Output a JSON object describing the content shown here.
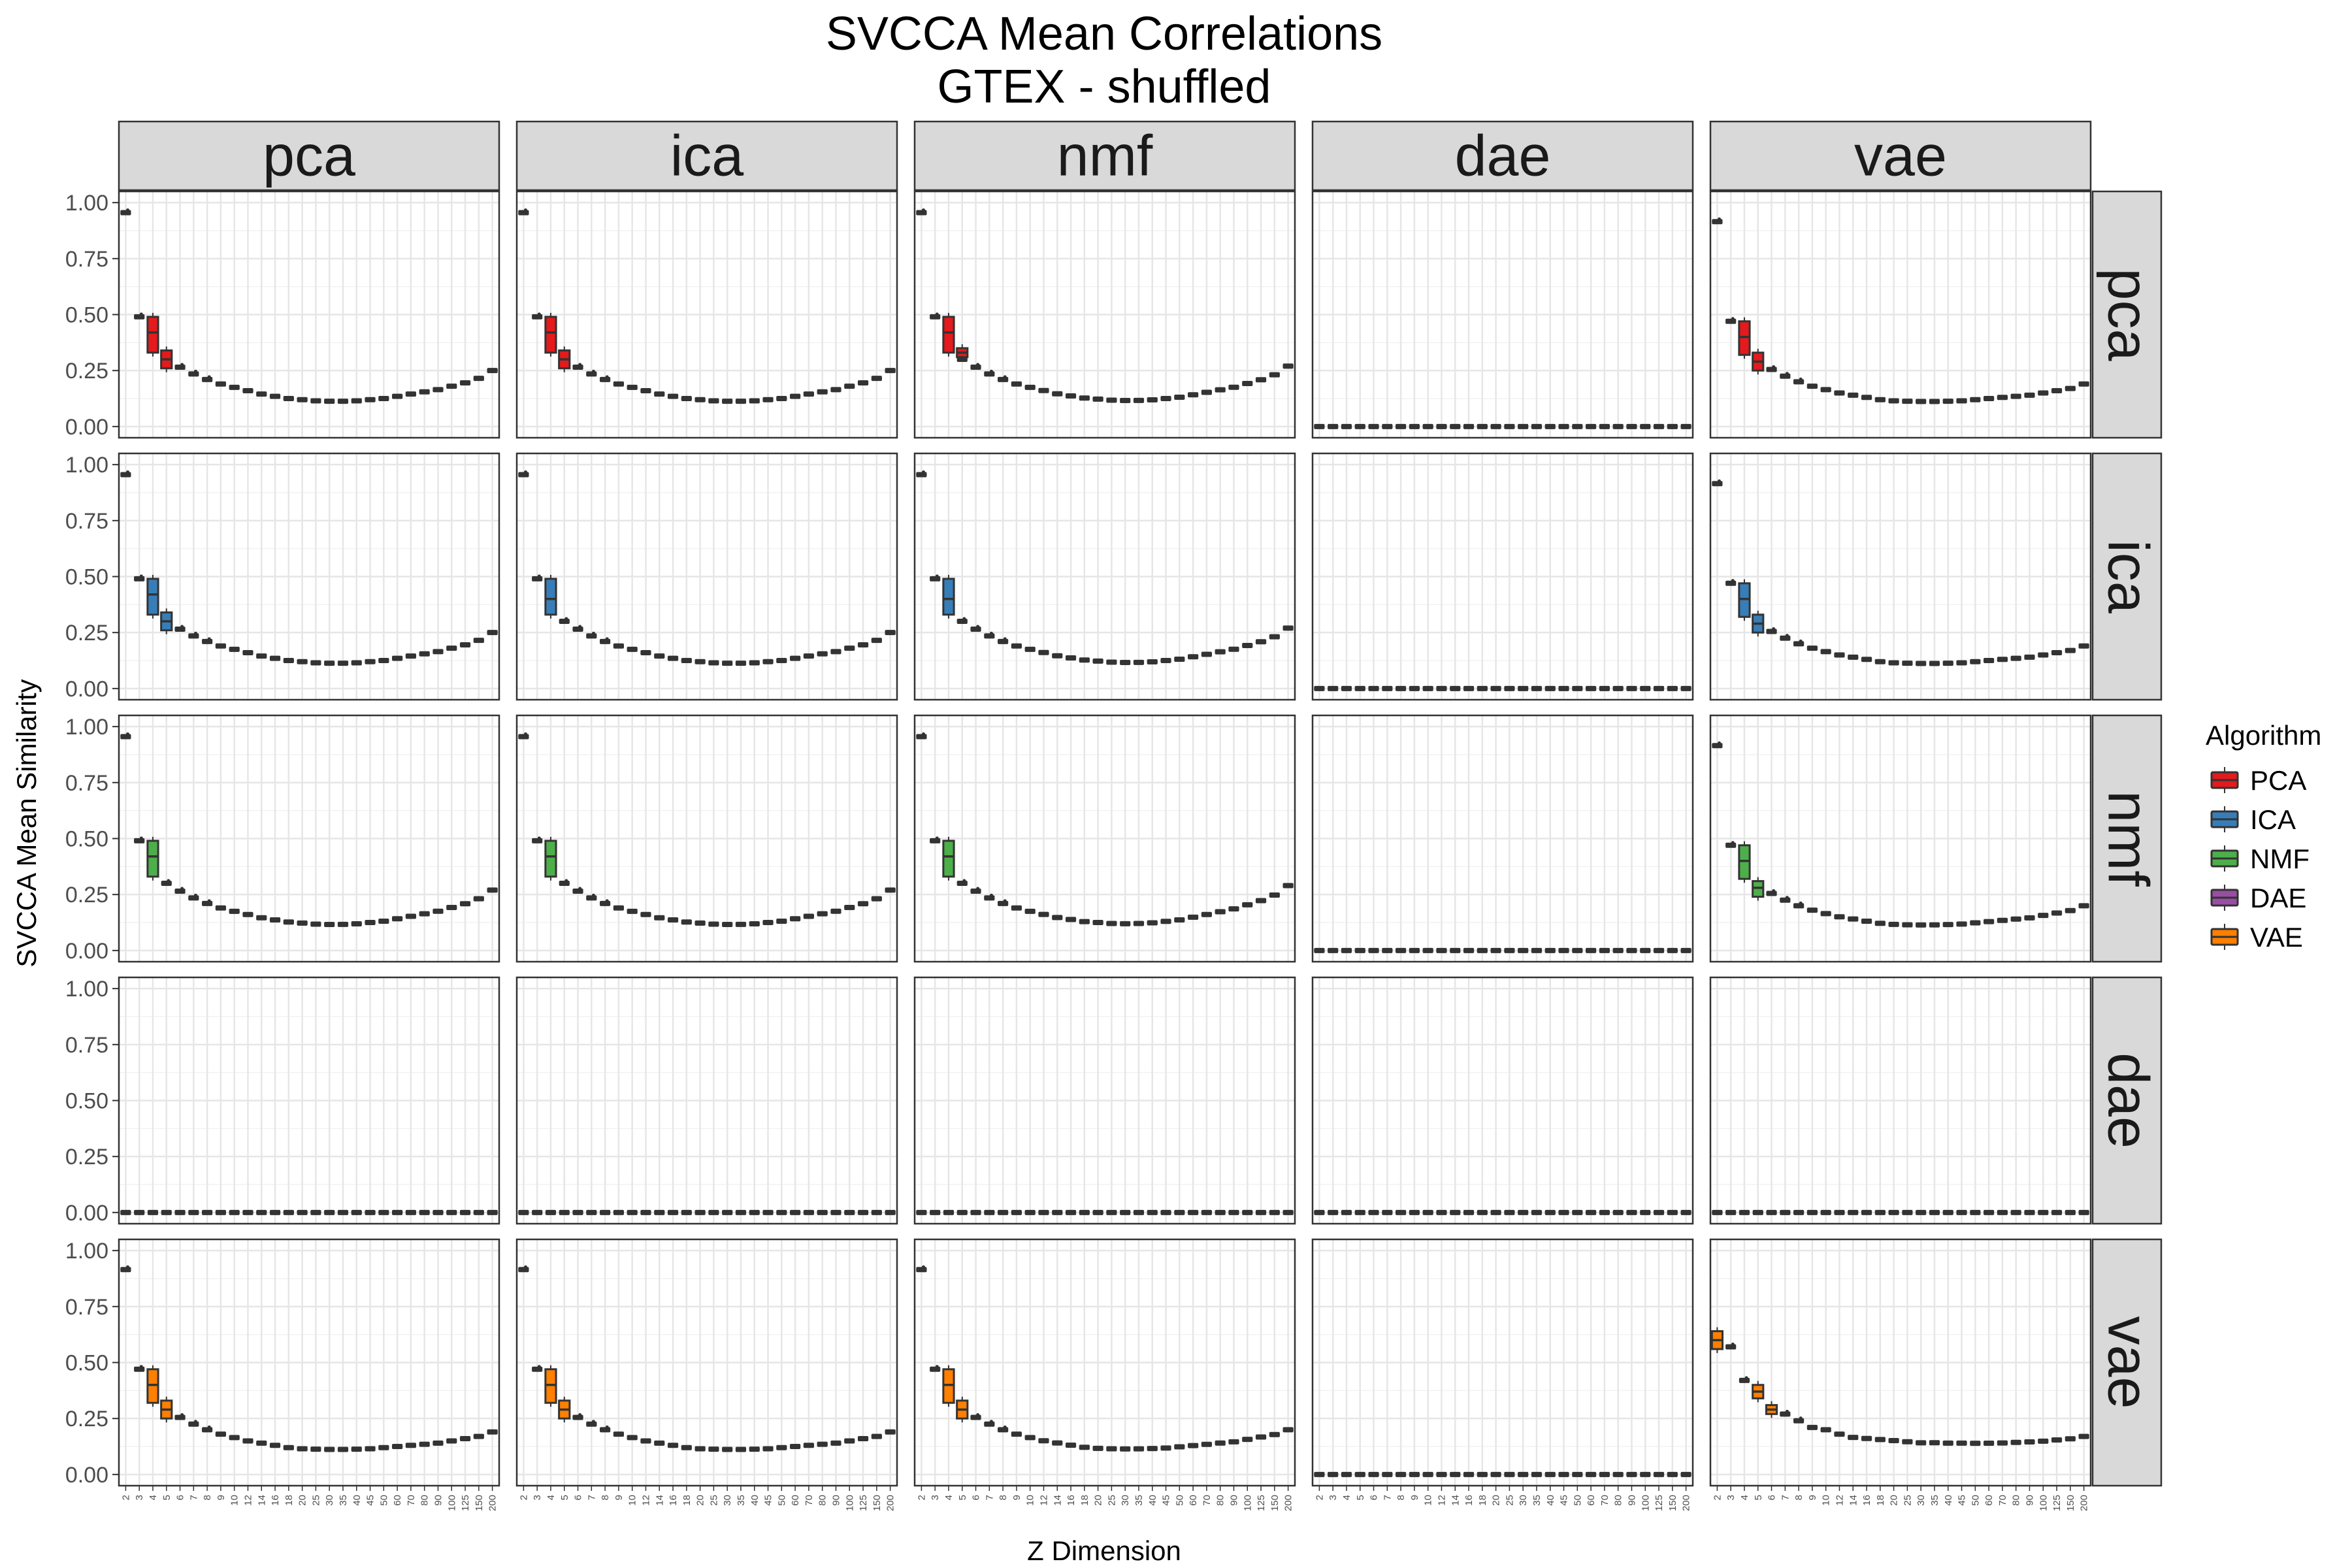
{
  "chart_data": {
    "type": "boxplot-facet-grid",
    "title_lines": [
      "SVCCA Mean Correlations",
      "GTEX - shuffled"
    ],
    "xlabel": "Z Dimension",
    "ylabel": "SVCCA Mean Similarity",
    "ylim": [
      -0.05,
      1.05
    ],
    "yticks": [
      0.0,
      0.25,
      0.5,
      0.75,
      1.0
    ],
    "ytick_labels": [
      "0.00",
      "0.25",
      "0.50",
      "0.75",
      "1.00"
    ],
    "x_categories": [
      "2",
      "3",
      "4",
      "5",
      "6",
      "7",
      "8",
      "9",
      "10",
      "12",
      "14",
      "16",
      "18",
      "20",
      "25",
      "30",
      "35",
      "40",
      "45",
      "50",
      "60",
      "70",
      "80",
      "90",
      "100",
      "125",
      "150",
      "200"
    ],
    "column_facets": [
      "pca",
      "ica",
      "nmf",
      "dae",
      "vae"
    ],
    "row_facets": [
      "pca",
      "ica",
      "nmf",
      "dae",
      "vae"
    ],
    "grid": true,
    "legend": {
      "title": "Algorithm",
      "placement": "right",
      "entries": [
        {
          "label": "PCA",
          "color": "#e41a1c"
        },
        {
          "label": "ICA",
          "color": "#377eb8"
        },
        {
          "label": "NMF",
          "color": "#4daf4a"
        },
        {
          "label": "DAE",
          "color": "#984ea3"
        },
        {
          "label": "VAE",
          "color": "#ff7f00"
        }
      ]
    },
    "curve_profiles": {
      "pca_like": [
        0.955,
        0.49,
        0.42,
        0.3,
        0.265,
        0.235,
        0.21,
        0.19,
        0.175,
        0.16,
        0.145,
        0.135,
        0.125,
        0.12,
        0.115,
        0.113,
        0.113,
        0.115,
        0.12,
        0.125,
        0.135,
        0.145,
        0.155,
        0.165,
        0.18,
        0.195,
        0.215,
        0.25
      ],
      "vae_like": [
        0.915,
        0.47,
        0.4,
        0.29,
        0.255,
        0.225,
        0.2,
        0.18,
        0.165,
        0.15,
        0.14,
        0.13,
        0.12,
        0.115,
        0.113,
        0.112,
        0.112,
        0.113,
        0.115,
        0.12,
        0.125,
        0.13,
        0.135,
        0.14,
        0.15,
        0.16,
        0.17,
        0.19
      ],
      "vae_vs_vae": [
        0.6,
        0.57,
        0.42,
        0.35,
        0.29,
        0.27,
        0.24,
        0.21,
        0.2,
        0.18,
        0.165,
        0.16,
        0.155,
        0.15,
        0.145,
        0.14,
        0.14,
        0.138,
        0.138,
        0.137,
        0.137,
        0.138,
        0.14,
        0.142,
        0.145,
        0.15,
        0.155,
        0.165
      ],
      "zero": [
        0,
        0,
        0,
        0,
        0,
        0,
        0,
        0,
        0,
        0,
        0,
        0,
        0,
        0,
        0,
        0,
        0,
        0,
        0,
        0,
        0,
        0,
        0,
        0,
        0,
        0,
        0,
        0
      ]
    },
    "panels": [
      {
        "row": "pca",
        "col": "pca",
        "profile": "pca_like",
        "end": 0.25,
        "box": {
          "z": "4",
          "q1": 0.33,
          "med": 0.42,
          "q3": 0.49,
          "color": "#e41a1c"
        },
        "box2": {
          "z": "5",
          "q1": 0.26,
          "med": 0.3,
          "q3": 0.34,
          "color": "#e41a1c"
        }
      },
      {
        "row": "pca",
        "col": "ica",
        "profile": "pca_like",
        "end": 0.25,
        "box": {
          "z": "4",
          "q1": 0.33,
          "med": 0.42,
          "q3": 0.49,
          "color": "#e41a1c"
        },
        "box2": {
          "z": "5",
          "q1": 0.26,
          "med": 0.3,
          "q3": 0.34,
          "color": "#e41a1c"
        }
      },
      {
        "row": "pca",
        "col": "nmf",
        "profile": "pca_like",
        "end": 0.27,
        "box": {
          "z": "4",
          "q1": 0.33,
          "med": 0.42,
          "q3": 0.49,
          "color": "#e41a1c"
        },
        "box2": {
          "z": "5",
          "q1": 0.31,
          "med": 0.33,
          "q3": 0.35,
          "color": "#e41a1c"
        }
      },
      {
        "row": "pca",
        "col": "dae",
        "profile": "zero"
      },
      {
        "row": "pca",
        "col": "vae",
        "profile": "vae_like",
        "end": 0.19,
        "box": {
          "z": "4",
          "q1": 0.32,
          "med": 0.4,
          "q3": 0.47,
          "color": "#e41a1c"
        },
        "box2": {
          "z": "5",
          "q1": 0.25,
          "med": 0.29,
          "q3": 0.33,
          "color": "#e41a1c"
        }
      },
      {
        "row": "ica",
        "col": "pca",
        "profile": "pca_like",
        "end": 0.25,
        "box": {
          "z": "4",
          "q1": 0.33,
          "med": 0.42,
          "q3": 0.49,
          "color": "#377eb8"
        },
        "box2": {
          "z": "5",
          "q1": 0.26,
          "med": 0.3,
          "q3": 0.34,
          "color": "#377eb8"
        }
      },
      {
        "row": "ica",
        "col": "ica",
        "profile": "pca_like",
        "end": 0.25,
        "box": {
          "z": "4",
          "q1": 0.33,
          "med": 0.4,
          "q3": 0.49,
          "color": "#377eb8"
        }
      },
      {
        "row": "ica",
        "col": "nmf",
        "profile": "pca_like",
        "end": 0.27,
        "box": {
          "z": "4",
          "q1": 0.33,
          "med": 0.4,
          "q3": 0.49,
          "color": "#377eb8"
        }
      },
      {
        "row": "ica",
        "col": "dae",
        "profile": "zero"
      },
      {
        "row": "ica",
        "col": "vae",
        "profile": "vae_like",
        "end": 0.19,
        "box": {
          "z": "4",
          "q1": 0.32,
          "med": 0.4,
          "q3": 0.47,
          "color": "#377eb8"
        },
        "box2": {
          "z": "5",
          "q1": 0.25,
          "med": 0.29,
          "q3": 0.33,
          "color": "#377eb8"
        }
      },
      {
        "row": "nmf",
        "col": "pca",
        "profile": "pca_like",
        "end": 0.27,
        "box": {
          "z": "4",
          "q1": 0.33,
          "med": 0.42,
          "q3": 0.49,
          "color": "#4daf4a"
        }
      },
      {
        "row": "nmf",
        "col": "ica",
        "profile": "pca_like",
        "end": 0.27,
        "box": {
          "z": "4",
          "q1": 0.33,
          "med": 0.42,
          "q3": 0.49,
          "color": "#4daf4a"
        }
      },
      {
        "row": "nmf",
        "col": "nmf",
        "profile": "pca_like",
        "end": 0.29,
        "box": {
          "z": "4",
          "q1": 0.33,
          "med": 0.42,
          "q3": 0.49,
          "color": "#4daf4a"
        }
      },
      {
        "row": "nmf",
        "col": "dae",
        "profile": "zero"
      },
      {
        "row": "nmf",
        "col": "vae",
        "profile": "vae_like",
        "end": 0.2,
        "box": {
          "z": "4",
          "q1": 0.32,
          "med": 0.4,
          "q3": 0.47,
          "color": "#4daf4a"
        },
        "box2": {
          "z": "5",
          "q1": 0.24,
          "med": 0.28,
          "q3": 0.31,
          "color": "#4daf4a"
        }
      },
      {
        "row": "dae",
        "col": "pca",
        "profile": "zero"
      },
      {
        "row": "dae",
        "col": "ica",
        "profile": "zero"
      },
      {
        "row": "dae",
        "col": "nmf",
        "profile": "zero"
      },
      {
        "row": "dae",
        "col": "dae",
        "profile": "zero"
      },
      {
        "row": "dae",
        "col": "vae",
        "profile": "zero"
      },
      {
        "row": "vae",
        "col": "pca",
        "profile": "vae_like",
        "end": 0.19,
        "box": {
          "z": "4",
          "q1": 0.32,
          "med": 0.4,
          "q3": 0.47,
          "color": "#ff7f00"
        },
        "box2": {
          "z": "5",
          "q1": 0.25,
          "med": 0.29,
          "q3": 0.33,
          "color": "#ff7f00"
        }
      },
      {
        "row": "vae",
        "col": "ica",
        "profile": "vae_like",
        "end": 0.19,
        "box": {
          "z": "4",
          "q1": 0.32,
          "med": 0.4,
          "q3": 0.47,
          "color": "#ff7f00"
        },
        "box2": {
          "z": "5",
          "q1": 0.25,
          "med": 0.29,
          "q3": 0.33,
          "color": "#ff7f00"
        }
      },
      {
        "row": "vae",
        "col": "nmf",
        "profile": "vae_like",
        "end": 0.2,
        "box": {
          "z": "4",
          "q1": 0.32,
          "med": 0.4,
          "q3": 0.47,
          "color": "#ff7f00"
        },
        "box2": {
          "z": "5",
          "q1": 0.25,
          "med": 0.29,
          "q3": 0.33,
          "color": "#ff7f00"
        }
      },
      {
        "row": "vae",
        "col": "dae",
        "profile": "zero"
      },
      {
        "row": "vae",
        "col": "vae",
        "profile": "vae_vs_vae",
        "end": 0.17,
        "box": {
          "z": "2",
          "q1": 0.56,
          "med": 0.6,
          "q3": 0.64,
          "color": "#ff7f00"
        },
        "box2": {
          "z": "5",
          "q1": 0.34,
          "med": 0.37,
          "q3": 0.4,
          "color": "#ff7f00"
        },
        "box3": {
          "z": "6",
          "q1": 0.27,
          "med": 0.29,
          "q3": 0.31,
          "color": "#ff7f00"
        }
      }
    ]
  }
}
